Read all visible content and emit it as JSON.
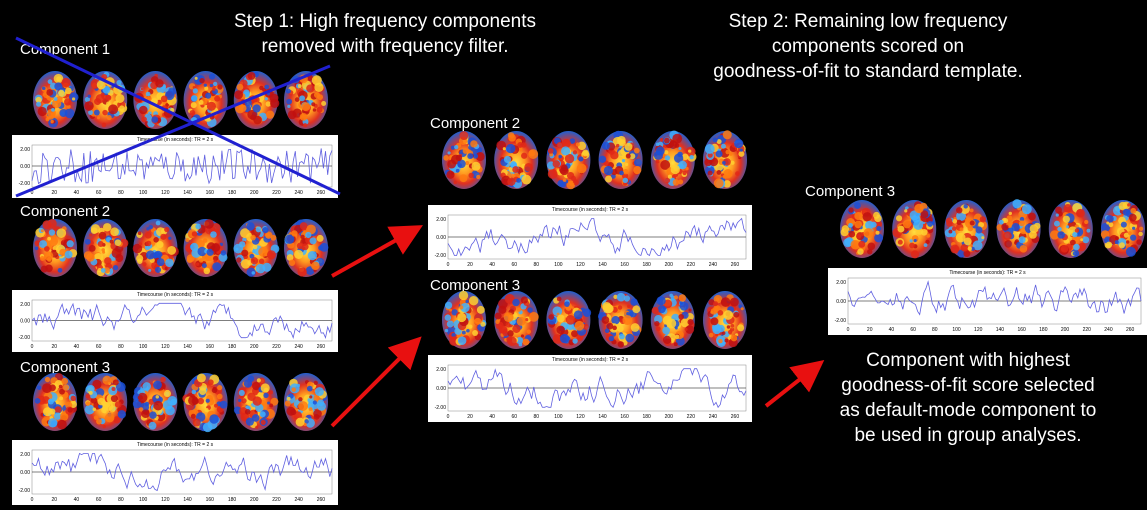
{
  "step1": {
    "lines": [
      "Step 1: High frequency components",
      "removed with frequency filter."
    ]
  },
  "step2": {
    "lines": [
      "Step 2: Remaining low frequency",
      "components scored on",
      "goodness-of-fit to standard template."
    ]
  },
  "result": {
    "lines": [
      "Component with highest",
      "goodness-of-fit score selected",
      "as default-mode component to",
      "be used in group analyses."
    ]
  },
  "panels": [
    {
      "label": "Component 1"
    },
    {
      "label": "Component 2"
    },
    {
      "label": "Component 3"
    },
    {
      "label": "Component 2"
    },
    {
      "label": "Component 3"
    },
    {
      "label": "Component 3"
    }
  ],
  "plot": {
    "title": "Timecourse (in seconds): TR = 2 s",
    "yticks": [
      "2.00",
      "0.00",
      "-2.00"
    ],
    "xticks": [
      0,
      20,
      40,
      60,
      80,
      100,
      120,
      140,
      160,
      180,
      200,
      220,
      240,
      260
    ]
  }
}
